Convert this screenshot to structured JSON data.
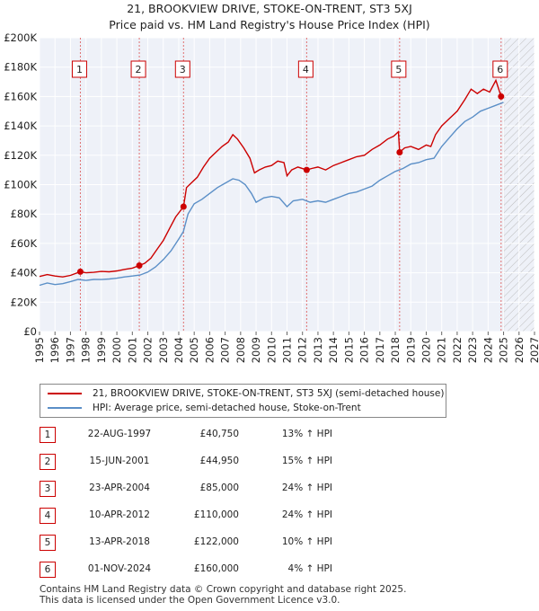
{
  "title_line1": "21, BROOKVIEW DRIVE, STOKE-ON-TRENT, ST3 5XJ",
  "title_line2": "Price paid vs. HM Land Registry's House Price Index (HPI)",
  "chart_data": {
    "type": "line",
    "title": "21, BROOKVIEW DRIVE, STOKE-ON-TRENT, ST3 5XJ — Price paid vs. HM Land Registry's House Price Index (HPI)",
    "xlabel": "",
    "ylabel": "",
    "xlim": [
      1995,
      2027
    ],
    "ylim": [
      0,
      200000
    ],
    "y_ticks": [
      {
        "v": 0,
        "label": "£0"
      },
      {
        "v": 20000,
        "label": "£20K"
      },
      {
        "v": 40000,
        "label": "£40K"
      },
      {
        "v": 60000,
        "label": "£60K"
      },
      {
        "v": 80000,
        "label": "£80K"
      },
      {
        "v": 100000,
        "label": "£100K"
      },
      {
        "v": 120000,
        "label": "£120K"
      },
      {
        "v": 140000,
        "label": "£140K"
      },
      {
        "v": 160000,
        "label": "£160K"
      },
      {
        "v": 180000,
        "label": "£180K"
      },
      {
        "v": 200000,
        "label": "£200K"
      }
    ],
    "x_ticks": [
      1995,
      1996,
      1997,
      1998,
      1999,
      2000,
      2001,
      2002,
      2003,
      2004,
      2005,
      2006,
      2007,
      2008,
      2009,
      2010,
      2011,
      2012,
      2013,
      2014,
      2015,
      2016,
      2017,
      2018,
      2019,
      2020,
      2021,
      2022,
      2023,
      2024,
      2025,
      2026,
      2027
    ],
    "hatch_from": 2025.0,
    "series": [
      {
        "name": "21, BROOKVIEW DRIVE, STOKE-ON-TRENT, ST3 5XJ (semi-detached house)",
        "color": "#cc0000",
        "points": [
          [
            1995.0,
            37500
          ],
          [
            1995.5,
            38800
          ],
          [
            1996.0,
            37800
          ],
          [
            1996.5,
            37200
          ],
          [
            1997.0,
            38200
          ],
          [
            1997.64,
            40750
          ],
          [
            1998.0,
            40000
          ],
          [
            1998.5,
            40300
          ],
          [
            1999.0,
            40900
          ],
          [
            1999.5,
            40700
          ],
          [
            2000.0,
            41300
          ],
          [
            2000.5,
            42300
          ],
          [
            2001.0,
            43200
          ],
          [
            2001.45,
            44950
          ],
          [
            2001.8,
            46500
          ],
          [
            2002.2,
            50000
          ],
          [
            2002.6,
            56000
          ],
          [
            2003.0,
            62000
          ],
          [
            2003.4,
            70000
          ],
          [
            2003.8,
            78000
          ],
          [
            2004.31,
            85000
          ],
          [
            2004.5,
            98000
          ],
          [
            2004.8,
            101000
          ],
          [
            2005.2,
            105000
          ],
          [
            2005.6,
            112000
          ],
          [
            2006.0,
            118000
          ],
          [
            2006.4,
            122000
          ],
          [
            2006.8,
            126000
          ],
          [
            2007.2,
            129000
          ],
          [
            2007.5,
            134000
          ],
          [
            2007.8,
            131000
          ],
          [
            2008.2,
            125000
          ],
          [
            2008.6,
            118000
          ],
          [
            2008.9,
            108000
          ],
          [
            2009.2,
            110000
          ],
          [
            2009.6,
            112000
          ],
          [
            2010.0,
            113000
          ],
          [
            2010.4,
            116000
          ],
          [
            2010.8,
            115000
          ],
          [
            2011.0,
            106000
          ],
          [
            2011.3,
            110000
          ],
          [
            2011.7,
            112000
          ],
          [
            2012.27,
            110000
          ],
          [
            2012.6,
            111000
          ],
          [
            2013.0,
            112000
          ],
          [
            2013.5,
            110000
          ],
          [
            2014.0,
            113000
          ],
          [
            2014.5,
            115000
          ],
          [
            2015.0,
            117000
          ],
          [
            2015.5,
            119000
          ],
          [
            2016.0,
            120000
          ],
          [
            2016.5,
            124000
          ],
          [
            2017.0,
            127000
          ],
          [
            2017.5,
            131000
          ],
          [
            2017.9,
            133000
          ],
          [
            2018.2,
            136000
          ],
          [
            2018.28,
            122000
          ],
          [
            2018.6,
            125000
          ],
          [
            2019.0,
            126000
          ],
          [
            2019.5,
            124000
          ],
          [
            2020.0,
            127000
          ],
          [
            2020.3,
            126000
          ],
          [
            2020.6,
            134000
          ],
          [
            2021.0,
            140000
          ],
          [
            2021.5,
            145000
          ],
          [
            2022.0,
            150000
          ],
          [
            2022.5,
            158000
          ],
          [
            2022.9,
            165000
          ],
          [
            2023.3,
            162000
          ],
          [
            2023.7,
            165000
          ],
          [
            2024.1,
            163000
          ],
          [
            2024.5,
            171000
          ],
          [
            2024.84,
            160000
          ]
        ]
      },
      {
        "name": "HPI: Average price, semi-detached house, Stoke-on-Trent",
        "color": "#5b8fc7",
        "points": [
          [
            1995.0,
            31500
          ],
          [
            1995.5,
            33000
          ],
          [
            1996.0,
            32000
          ],
          [
            1996.5,
            32600
          ],
          [
            1997.0,
            34000
          ],
          [
            1997.5,
            35500
          ],
          [
            1998.0,
            34800
          ],
          [
            1998.5,
            35500
          ],
          [
            1999.0,
            35400
          ],
          [
            1999.5,
            35800
          ],
          [
            2000.0,
            36300
          ],
          [
            2000.5,
            37200
          ],
          [
            2001.0,
            37800
          ],
          [
            2001.5,
            38500
          ],
          [
            2002.0,
            40500
          ],
          [
            2002.5,
            44000
          ],
          [
            2003.0,
            49000
          ],
          [
            2003.5,
            55000
          ],
          [
            2004.0,
            63000
          ],
          [
            2004.3,
            68000
          ],
          [
            2004.6,
            80000
          ],
          [
            2005.0,
            87000
          ],
          [
            2005.5,
            90000
          ],
          [
            2006.0,
            94000
          ],
          [
            2006.5,
            98000
          ],
          [
            2007.0,
            101000
          ],
          [
            2007.5,
            104000
          ],
          [
            2007.9,
            103000
          ],
          [
            2008.3,
            100000
          ],
          [
            2008.7,
            94000
          ],
          [
            2009.0,
            88000
          ],
          [
            2009.5,
            91000
          ],
          [
            2010.0,
            92000
          ],
          [
            2010.5,
            91000
          ],
          [
            2011.0,
            85000
          ],
          [
            2011.4,
            89000
          ],
          [
            2012.0,
            90000
          ],
          [
            2012.5,
            88000
          ],
          [
            2013.0,
            89000
          ],
          [
            2013.5,
            88000
          ],
          [
            2014.0,
            90000
          ],
          [
            2014.5,
            92000
          ],
          [
            2015.0,
            94000
          ],
          [
            2015.5,
            95000
          ],
          [
            2016.0,
            97000
          ],
          [
            2016.5,
            99000
          ],
          [
            2017.0,
            103000
          ],
          [
            2017.5,
            106000
          ],
          [
            2018.0,
            109000
          ],
          [
            2018.5,
            111000
          ],
          [
            2019.0,
            114000
          ],
          [
            2019.5,
            115000
          ],
          [
            2020.0,
            117000
          ],
          [
            2020.5,
            118000
          ],
          [
            2021.0,
            126000
          ],
          [
            2021.5,
            132000
          ],
          [
            2022.0,
            138000
          ],
          [
            2022.5,
            143000
          ],
          [
            2023.0,
            146000
          ],
          [
            2023.5,
            150000
          ],
          [
            2024.0,
            152000
          ],
          [
            2024.5,
            154000
          ],
          [
            2025.0,
            156000
          ]
        ]
      }
    ],
    "markers": [
      {
        "id": "1",
        "x": 1997.64,
        "y": 40750
      },
      {
        "id": "2",
        "x": 2001.45,
        "y": 44950
      },
      {
        "id": "3",
        "x": 2004.31,
        "y": 85000
      },
      {
        "id": "4",
        "x": 2012.27,
        "y": 110000
      },
      {
        "id": "5",
        "x": 2018.28,
        "y": 122000
      },
      {
        "id": "6",
        "x": 2024.84,
        "y": 160000
      }
    ]
  },
  "legend": {
    "property_label": "21, BROOKVIEW DRIVE, STOKE-ON-TRENT, ST3 5XJ (semi-detached house)",
    "hpi_label": "HPI: Average price, semi-detached house, Stoke-on-Trent",
    "property_color": "#cc0000",
    "hpi_color": "#5b8fc7"
  },
  "transactions": [
    {
      "num": "1",
      "date": "22-AUG-1997",
      "price": "£40,750",
      "hpi": "13% ↑ HPI"
    },
    {
      "num": "2",
      "date": "15-JUN-2001",
      "price": "£44,950",
      "hpi": "15% ↑ HPI"
    },
    {
      "num": "3",
      "date": "23-APR-2004",
      "price": "£85,000",
      "hpi": "24% ↑ HPI"
    },
    {
      "num": "4",
      "date": "10-APR-2012",
      "price": "£110,000",
      "hpi": "24% ↑ HPI"
    },
    {
      "num": "5",
      "date": "13-APR-2018",
      "price": "£122,000",
      "hpi": "10% ↑ HPI"
    },
    {
      "num": "6",
      "date": "01-NOV-2024",
      "price": "£160,000",
      "hpi": "4% ↑ HPI"
    }
  ],
  "footer": {
    "line1": "Contains HM Land Registry data © Crown copyright and database right 2025.",
    "line2": "This data is licensed under the Open Government Licence v3.0."
  }
}
